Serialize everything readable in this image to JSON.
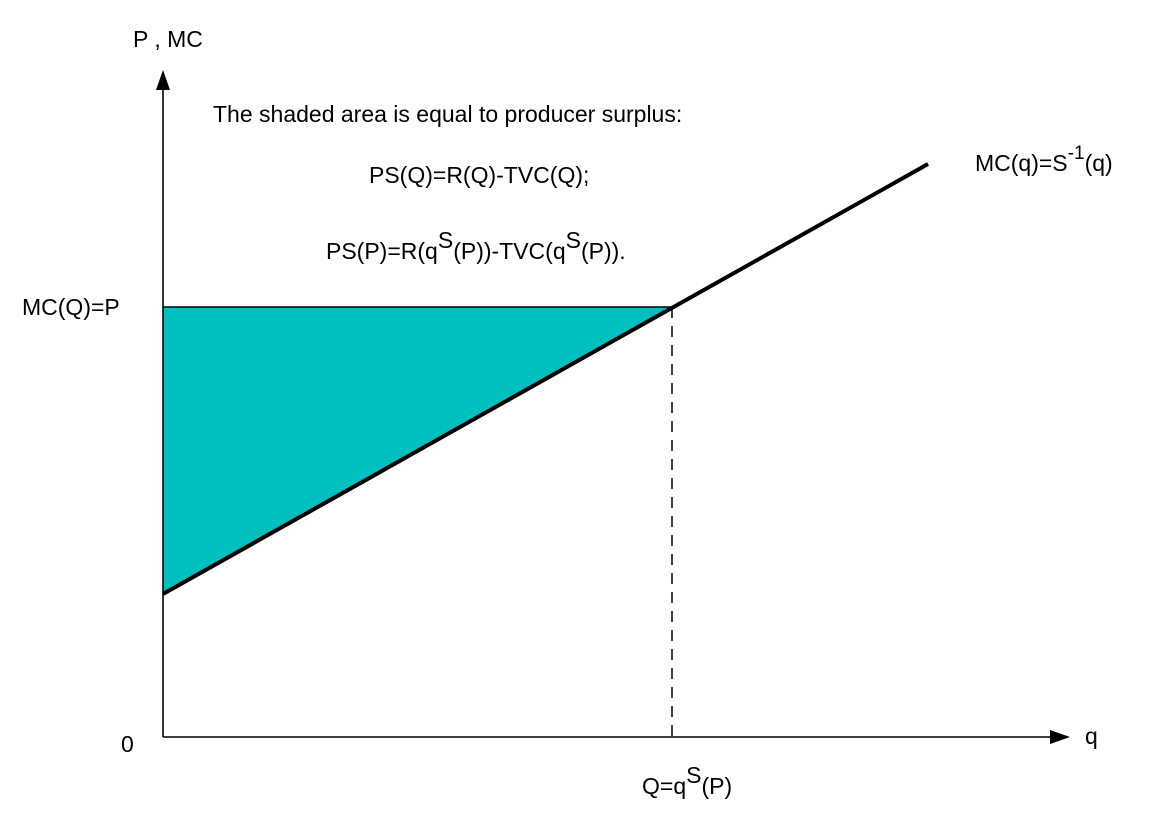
{
  "axes": {
    "y_label": "P , MC",
    "x_label": "q",
    "origin_label": "0"
  },
  "labels": {
    "price_level": "MC(Q)=P",
    "quantity": {
      "base": "Q=q",
      "sup": "S",
      "tail": "(P)"
    },
    "mc_curve": {
      "base": "MC(q)=S",
      "sup": "-1",
      "tail": "(q)"
    }
  },
  "annotation": {
    "line1": "The shaded area is equal to producer surplus:",
    "line2": "PS(Q)=R(Q)-TVC(Q);",
    "line3": {
      "part1": "PS(P)=R(q",
      "sup1": "S",
      "part2": "(P))-TVC(q",
      "sup2": "S",
      "part3": "(P))."
    }
  },
  "colors": {
    "shaded_area": "#00BFBF",
    "lines": "#000000"
  }
}
